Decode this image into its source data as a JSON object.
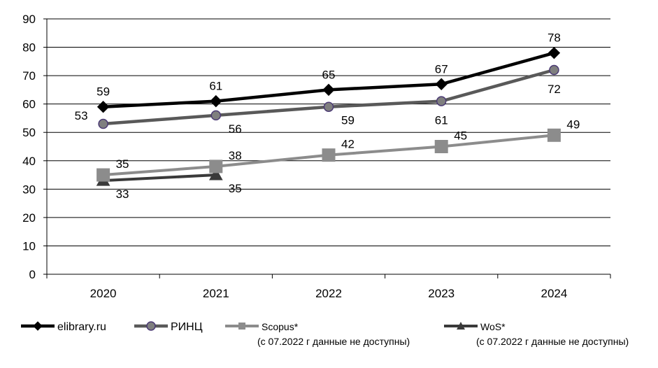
{
  "chart_data": {
    "type": "line",
    "title": "",
    "xlabel": "",
    "ylabel": "",
    "categories": [
      "2020",
      "2021",
      "2022",
      "2023",
      "2024"
    ],
    "ylim": [
      0,
      90
    ],
    "yticks": [
      0,
      10,
      20,
      30,
      40,
      50,
      60,
      70,
      80,
      90
    ],
    "grid": "horizontal",
    "legend_position": "bottom",
    "series": [
      {
        "name": "elibrary.ru",
        "note": "",
        "values": [
          59,
          61,
          65,
          67,
          78
        ],
        "color": "#000000",
        "marker": "diamond",
        "marker_fill": "#000000",
        "marker_stroke": "#000000"
      },
      {
        "name": "РИНЦ",
        "note": "",
        "values": [
          53,
          56,
          59,
          61,
          72
        ],
        "color": "#595959",
        "marker": "circle",
        "marker_fill": "#7f7f7f",
        "marker_stroke": "#4b3a74"
      },
      {
        "name": "Scopus*",
        "note": "(с 07.2022 г данные не доступны)",
        "values": [
          35,
          38,
          42,
          45,
          49
        ],
        "color": "#8c8c8c",
        "marker": "square",
        "marker_fill": "#8c8c8c",
        "marker_stroke": "#8c8c8c"
      },
      {
        "name": "WoS*",
        "note": "(с 07.2022 г данные не доступны)",
        "values": [
          33,
          35,
          null,
          null,
          null
        ],
        "color": "#3a3a3a",
        "marker": "triangle",
        "marker_fill": "#3a3a3a",
        "marker_stroke": "#3a3a3a"
      }
    ],
    "data_labels": [
      [
        "above",
        "above",
        "above",
        "above",
        "above"
      ],
      [
        "left",
        "below-right",
        "below-right",
        "below",
        "below"
      ],
      [
        "above-right",
        "above-right",
        "above-right",
        "above-right",
        "above-right"
      ],
      [
        "below-right",
        "below-right",
        null,
        null,
        null
      ]
    ]
  }
}
